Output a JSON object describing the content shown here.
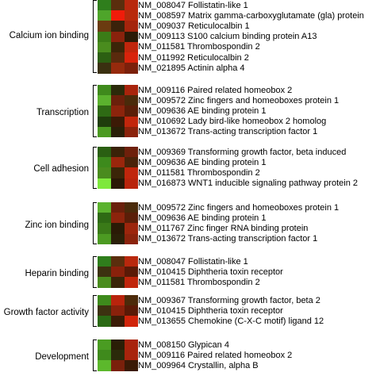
{
  "groups": [
    {
      "category": "Calcium ion binding",
      "genes": [
        {
          "label": "NM_008047 Follistatin-like 1",
          "colors": [
            "#2f7e1c",
            "#5a2e0d",
            "#b8280d"
          ]
        },
        {
          "label": "NM_008597 Matrix gamma-carboxyglutamate (gla) protein",
          "colors": [
            "#4ea52a",
            "#f01c0a",
            "#b82a0c"
          ]
        },
        {
          "label": "NM_009037 Reticulocalbin 1",
          "colors": [
            "#6b3b10",
            "#3a220a",
            "#a5240c"
          ]
        },
        {
          "label": "NM_009113 S100 calcium binding protein A13",
          "colors": [
            "#3b7c17",
            "#8a220c",
            "#2b1a06"
          ]
        },
        {
          "label": "NM_011581 Thrombospondin 2",
          "colors": [
            "#4a8c1e",
            "#3b2508",
            "#c0260c"
          ]
        },
        {
          "label": "NM_011992 Reticulocalbin 2",
          "colors": [
            "#2c5f12",
            "#5a2a0d",
            "#d8230b"
          ]
        },
        {
          "label": "NM_021895 Actinin alpha 4",
          "colors": [
            "#3a3010",
            "#962a0d",
            "#7b200b"
          ]
        }
      ]
    },
    {
      "category": "Transcription",
      "genes": [
        {
          "label": "NM_009116 Paired related homeobox 2",
          "colors": [
            "#3f8a1c",
            "#2b2a0a",
            "#a8240c"
          ]
        },
        {
          "label": "NM_009572 Zinc fingers and homeoboxes protein 1",
          "colors": [
            "#5bb22e",
            "#6a200b",
            "#4a2a0a"
          ]
        },
        {
          "label": "NM_009636 AE binding protein 1",
          "colors": [
            "#2e6a14",
            "#8c240c",
            "#5a1e08"
          ]
        },
        {
          "label": "NM_010692 Lady bird-like homeobox 2 homolog",
          "colors": [
            "#1f3d0c",
            "#3c1a06",
            "#c2260c"
          ]
        },
        {
          "label": "NM_013672 Trans-acting transcription factor 1",
          "colors": [
            "#4c9a22",
            "#2a2008",
            "#8a230c"
          ]
        }
      ]
    },
    {
      "category": "Cell adhesion",
      "genes": [
        {
          "label": "NM_009369 Transforming growth factor, beta induced",
          "colors": [
            "#2a5f12",
            "#3a2208",
            "#6e200b"
          ]
        },
        {
          "label": "NM_009636 AE binding protein 1",
          "colors": [
            "#3d8a1c",
            "#9a260c",
            "#4a2309"
          ]
        },
        {
          "label": "NM_011581 Thrombospondin 2",
          "colors": [
            "#4a8c1e",
            "#3b2508",
            "#c0260c"
          ]
        },
        {
          "label": "NM_016873 WNT1 inducible signaling pathway protein 2",
          "colors": [
            "#7ee83c",
            "#2a1806",
            "#b8240c"
          ]
        }
      ]
    },
    {
      "category": "Zinc ion binding",
      "genes": [
        {
          "label": "NM_009572 Zinc fingers and homeoboxes protein 1",
          "colors": [
            "#5bb22e",
            "#6a200b",
            "#4a2a0a"
          ]
        },
        {
          "label": "NM_009636 AE binding protein 1",
          "colors": [
            "#2e6a14",
            "#8c240c",
            "#5a1e08"
          ]
        },
        {
          "label": "NM_011767 Zinc finger RNA binding protein",
          "colors": [
            "#3a7a18",
            "#2a1a06",
            "#9c250c"
          ]
        },
        {
          "label": "NM_013672 Trans-acting transcription factor 1",
          "colors": [
            "#4c9a22",
            "#2a2008",
            "#8a230c"
          ]
        }
      ]
    },
    {
      "category": "Heparin binding",
      "genes": [
        {
          "label": "NM_008047 Follistatin-like 1",
          "colors": [
            "#2f7e1c",
            "#5a2e0d",
            "#b8280d"
          ]
        },
        {
          "label": "NM_010415 Diphtheria toxin receptor",
          "colors": [
            "#3c3210",
            "#8a210b",
            "#5a1a07"
          ]
        },
        {
          "label": "NM_011581 Thrombospondin 2",
          "colors": [
            "#4a8c1e",
            "#3b2508",
            "#c0260c"
          ]
        }
      ]
    },
    {
      "category": "Growth factor activity",
      "genes": [
        {
          "label": "NM_009367 Transforming growth factor, beta 2",
          "colors": [
            "#3e8a1c",
            "#b8240c",
            "#4c2a0a"
          ]
        },
        {
          "label": "NM_010415 Diphtheria toxin receptor",
          "colors": [
            "#3c3210",
            "#8a210b",
            "#5a1a07"
          ]
        },
        {
          "label": "NM_013655 Chemokine (C-X-C motif) ligand 12",
          "colors": [
            "#2a6a14",
            "#3b1c06",
            "#d0240b"
          ]
        }
      ]
    },
    {
      "category": "Development",
      "genes": [
        {
          "label": "NM_008150 Glypican 4",
          "colors": [
            "#4a9c22",
            "#2a1e06",
            "#a8230c"
          ]
        },
        {
          "label": "NM_009116 Paired related homeobox 2",
          "colors": [
            "#3f8a1c",
            "#2b2a0a",
            "#a8240c"
          ]
        },
        {
          "label": "NM_009964 Crystallin, alpha B",
          "colors": [
            "#5cb82c",
            "#7a200b",
            "#3a1a06"
          ]
        }
      ]
    }
  ]
}
